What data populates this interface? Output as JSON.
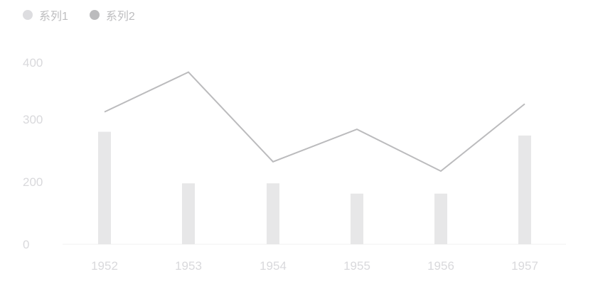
{
  "chart_data": {
    "type": "bar",
    "categories": [
      "1952",
      "1953",
      "1954",
      "1955",
      "1956",
      "1957"
    ],
    "series": [
      {
        "name": "系列1",
        "type": "bar",
        "color": "#e7e7e8",
        "values": [
          280,
          195,
          195,
          162,
          162,
          274
        ]
      },
      {
        "name": "系列2",
        "type": "line",
        "color": "#bbbbbd",
        "values": [
          313,
          383,
          232,
          284,
          217,
          327
        ]
      }
    ],
    "y_ticks": [
      "0",
      "200",
      "300",
      "400"
    ],
    "y_tick_values": [
      0,
      200,
      300,
      400
    ],
    "legend_position": "top-left",
    "grid": false
  }
}
